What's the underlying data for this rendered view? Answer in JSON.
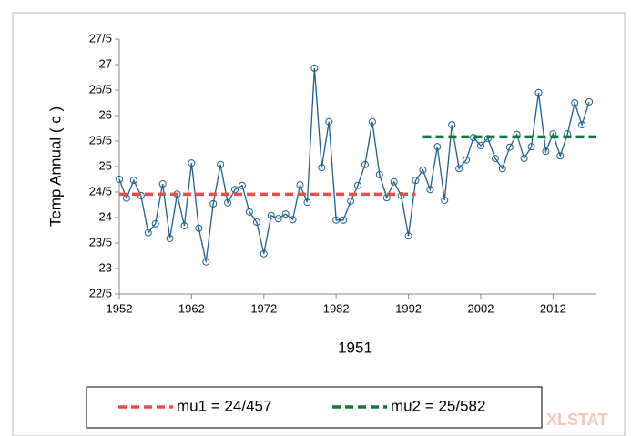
{
  "chart_data": {
    "type": "line",
    "xlabel": "1951",
    "ylabel": "Temp Annual ( c )",
    "x": [
      1952,
      1953,
      1954,
      1955,
      1956,
      1957,
      1958,
      1959,
      1960,
      1961,
      1962,
      1963,
      1964,
      1965,
      1966,
      1967,
      1968,
      1969,
      1970,
      1971,
      1972,
      1973,
      1974,
      1975,
      1976,
      1977,
      1978,
      1979,
      1980,
      1981,
      1982,
      1983,
      1984,
      1985,
      1986,
      1987,
      1988,
      1989,
      1990,
      1991,
      1992,
      1993,
      1994,
      1995,
      1996,
      1997,
      1998,
      1999,
      2000,
      2001,
      2002,
      2003,
      2004,
      2005,
      2006,
      2007,
      2008,
      2009,
      2010,
      2011,
      2012,
      2013,
      2014,
      2015,
      2016,
      2017
    ],
    "series": [
      {
        "name": "Temp",
        "color": "#1f5f8b",
        "values": [
          24.75,
          24.38,
          24.73,
          24.43,
          23.7,
          23.88,
          24.66,
          23.59,
          24.46,
          23.84,
          25.07,
          23.79,
          23.13,
          24.27,
          25.04,
          24.29,
          24.55,
          24.63,
          24.11,
          23.91,
          23.29,
          24.04,
          23.98,
          24.07,
          23.96,
          24.64,
          24.3,
          26.93,
          24.98,
          25.88,
          23.95,
          23.95,
          24.32,
          24.63,
          25.04,
          25.88,
          24.84,
          24.39,
          24.7,
          24.43,
          23.64,
          24.73,
          24.93,
          24.55,
          25.39,
          24.34,
          25.82,
          24.96,
          25.13,
          25.57,
          25.41,
          25.55,
          25.16,
          24.96,
          25.38,
          25.63,
          25.16,
          25.39,
          26.45,
          25.3,
          25.64,
          25.21,
          25.64,
          26.25,
          25.82,
          26.27
        ]
      }
    ],
    "means": [
      {
        "name": "mu1 = 24/457",
        "color": "#f04b4b",
        "x": [
          1952,
          1993
        ],
        "values": [
          24.457,
          24.457
        ]
      },
      {
        "name": "mu2 = 25/582",
        "color": "#0e7a3a",
        "x": [
          1994,
          2018
        ],
        "values": [
          25.582,
          25.582
        ]
      }
    ],
    "xlim": [
      1952,
      2018
    ],
    "xticks": [
      1952,
      1962,
      1972,
      1982,
      1992,
      2002,
      2012
    ],
    "ylim": [
      22.5,
      27.5
    ],
    "yticks": [
      {
        "value": 22.5,
        "label": "22/5"
      },
      23,
      {
        "value": 23.5,
        "label": "23/5"
      },
      24,
      {
        "value": 24.5,
        "label": "24/5"
      },
      25,
      {
        "value": 25.5,
        "label": "25/5"
      },
      26,
      {
        "value": 26.5,
        "label": "26/5"
      },
      27,
      {
        "value": 27.5,
        "label": "27/5"
      }
    ],
    "watermark": "XLSTAT"
  }
}
